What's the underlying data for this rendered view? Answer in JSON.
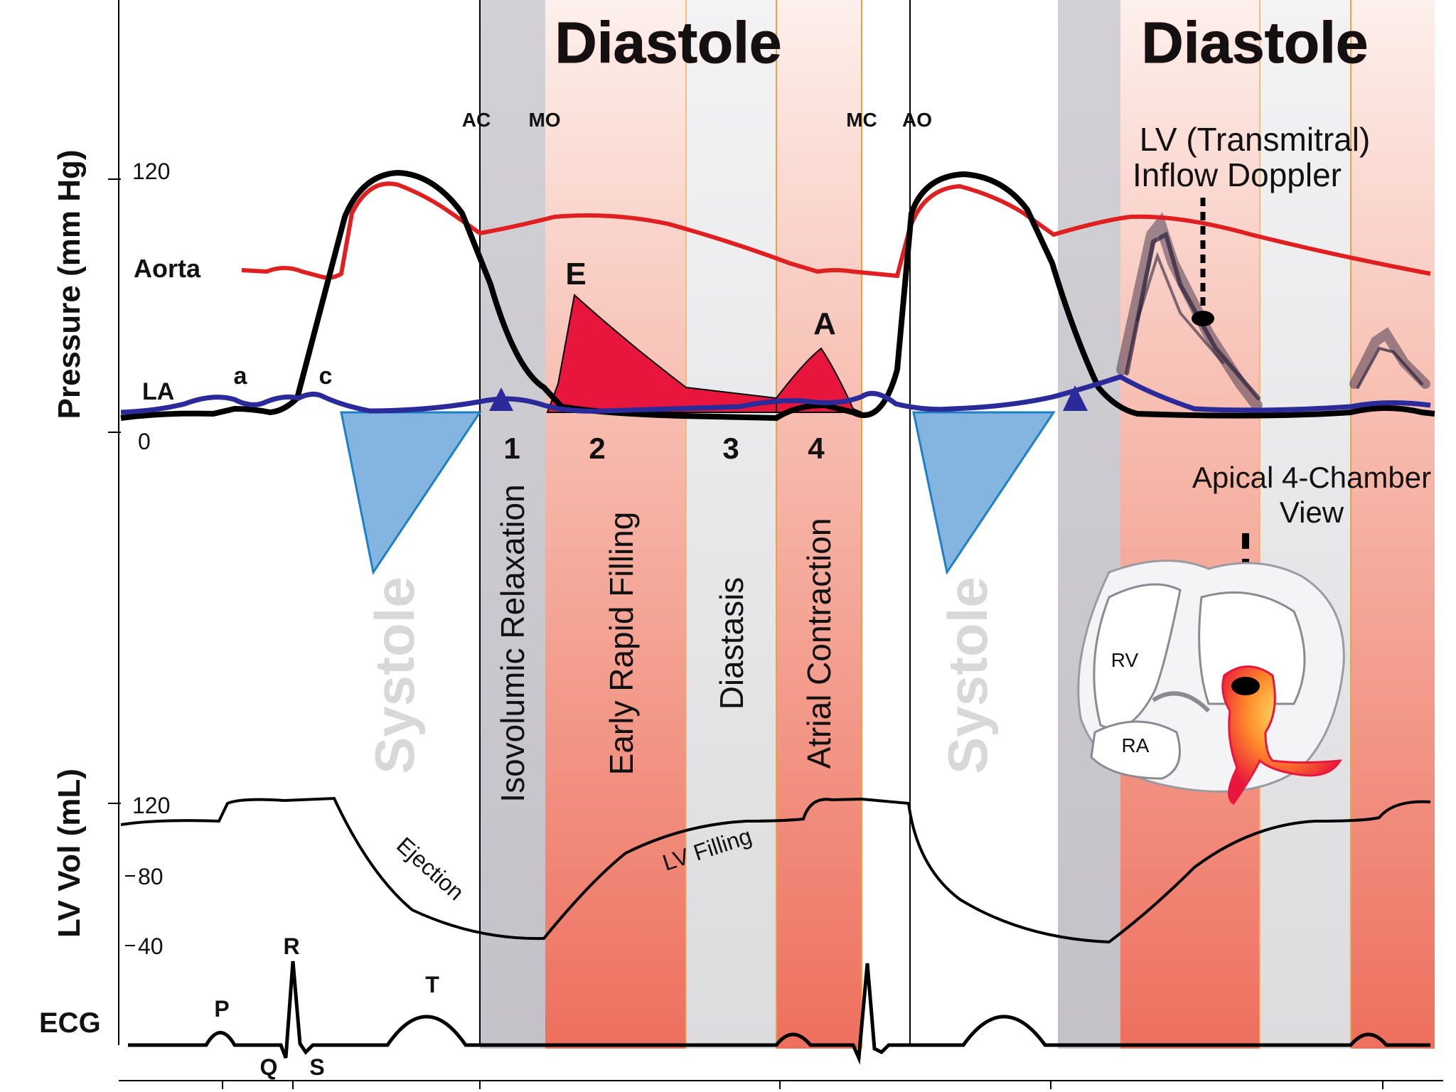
{
  "titles": {
    "diastole_1": "Diastole",
    "diastole_2": "Diastole"
  },
  "valve_events": {
    "ac": "AC",
    "mo": "MO",
    "mc": "MC",
    "ao": "AO"
  },
  "axes": {
    "pressure_label": "Pressure (mm Hg)",
    "pressure_ticks": [
      "120",
      "0"
    ],
    "volume_label": "LV Vol (mL)",
    "volume_ticks": [
      "120",
      "80",
      "40"
    ],
    "ecg_label": "ECG"
  },
  "curve_labels": {
    "aorta": "Aorta",
    "la": "LA",
    "a": "a",
    "c": "c",
    "e": "E",
    "a_wave": "A",
    "ejection": "Ejection",
    "lv_filling": "LV Filling"
  },
  "phases": {
    "n1": "1",
    "n2": "2",
    "n3": "3",
    "n4": "4",
    "systole": "Systole",
    "isovolumic": "Isovolumic Relaxation",
    "early": "Early Rapid Filling",
    "diastasis": "Diastasis",
    "atrial": "Atrial Contraction"
  },
  "ecg_waves": {
    "p": "P",
    "q": "Q",
    "r": "R",
    "s": "S",
    "t": "T"
  },
  "doppler": {
    "line1": "LV (Transmitral)",
    "line2": "Inflow Doppler"
  },
  "apical": {
    "line1": "Apical 4-Chamber",
    "line2": "View",
    "rv": "RV",
    "ra": "RA"
  },
  "colors": {
    "aorta": "#e02020",
    "lv": "#000000",
    "la": "#2a2a9a",
    "e_wave": "#e8163c",
    "systole_fill": "#6fa8dc",
    "band_grey": "#c7c6cc",
    "band_red": "#f08878"
  }
}
